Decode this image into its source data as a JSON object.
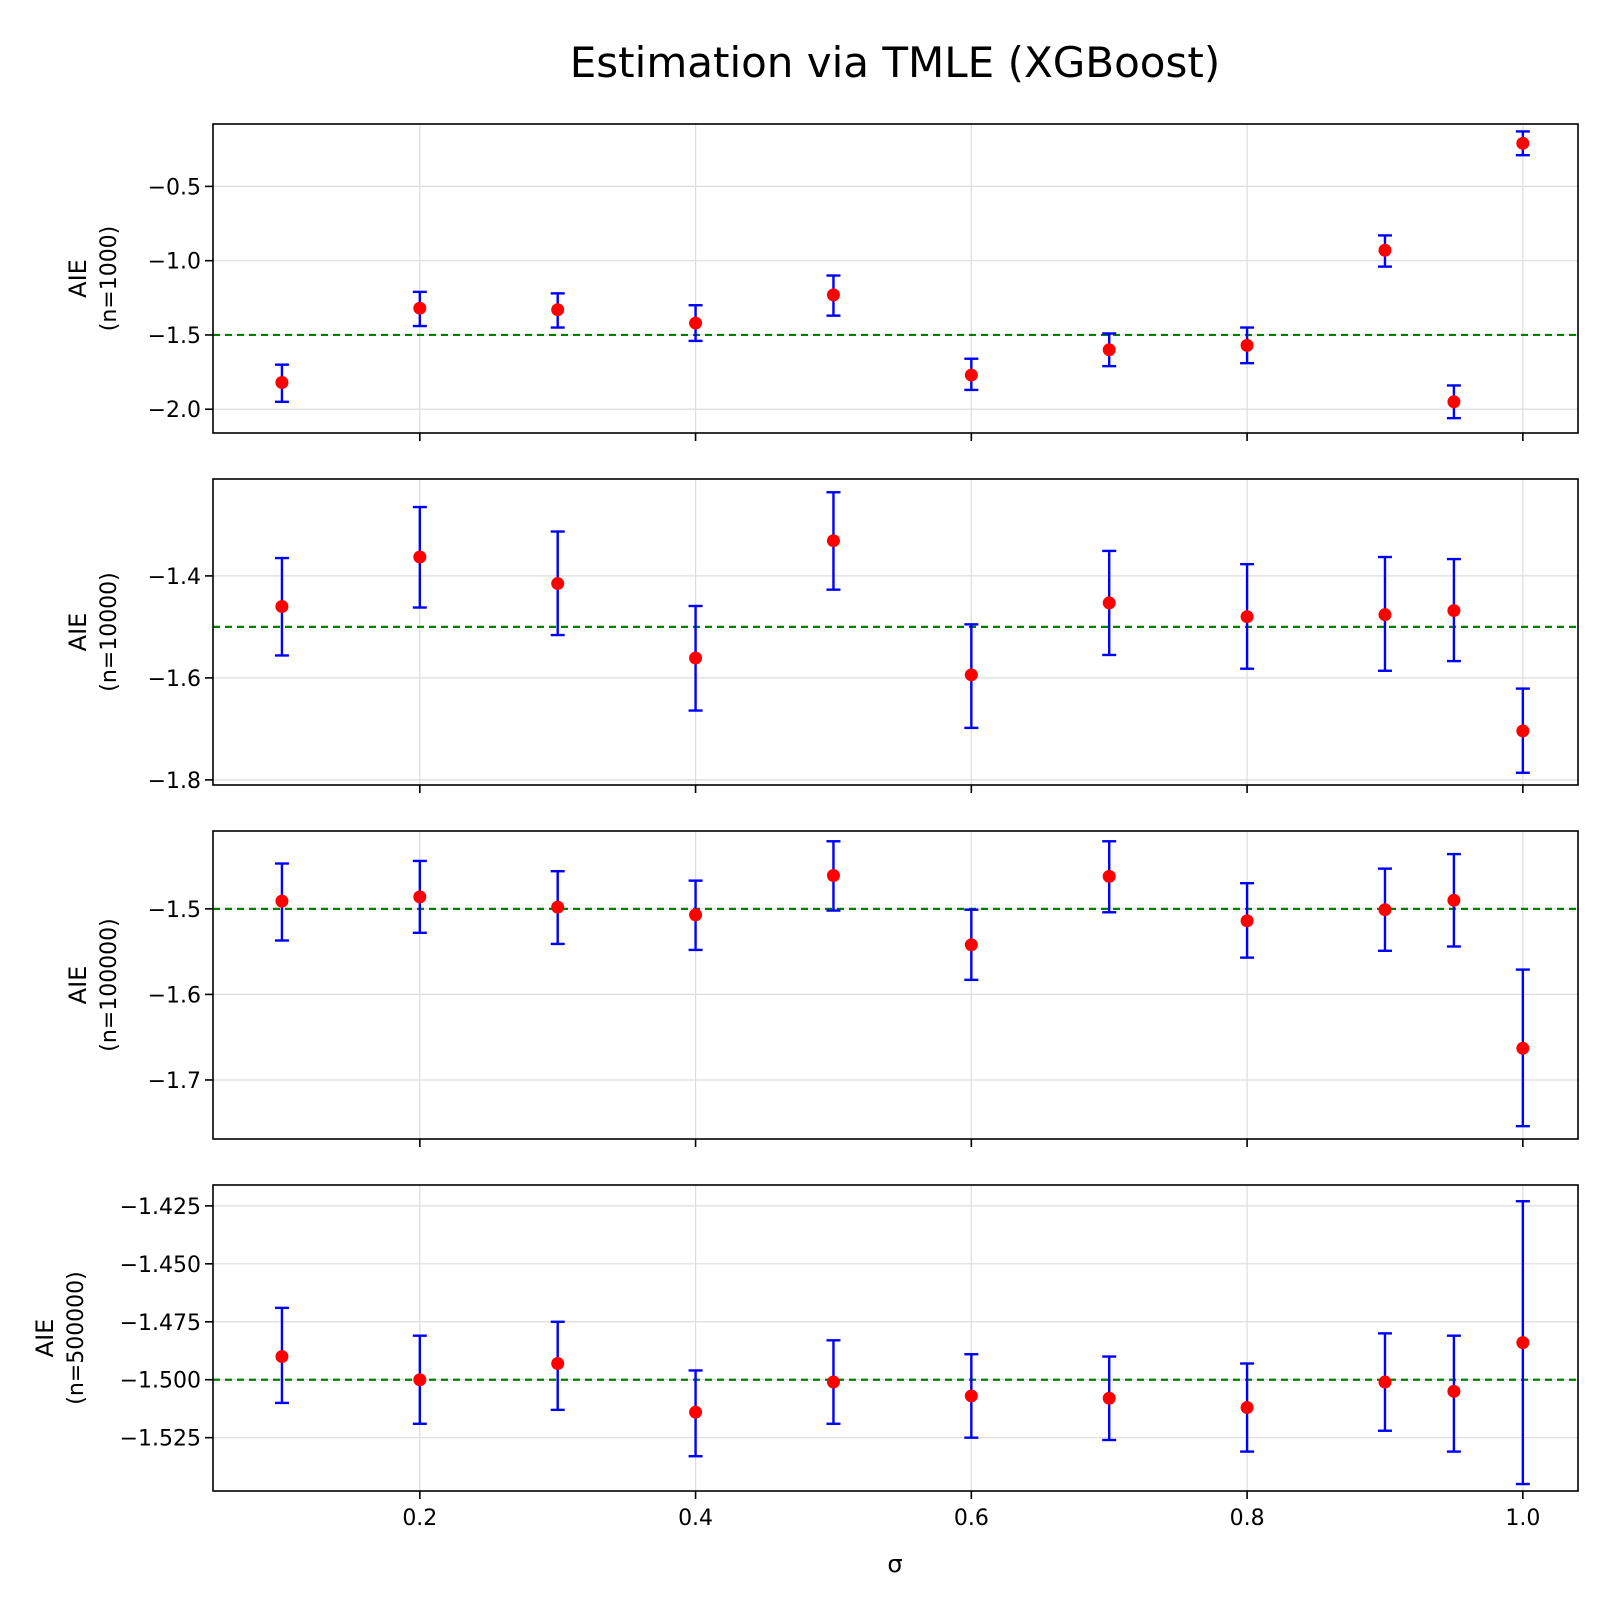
{
  "title": "Estimation via TMLE (XGBoost)",
  "xlabel": "σ",
  "colors": {
    "point": "#ff0000",
    "errorbar": "#0000ff",
    "reference": "#008000",
    "grid": "#dddddd"
  },
  "chart_data": [
    {
      "type": "scatter",
      "ylabel": "AIE",
      "ylabel_sub": "(n=1000)",
      "x": [
        0.1,
        0.2,
        0.3,
        0.4,
        0.5,
        0.6,
        0.7,
        0.8,
        0.9,
        0.95,
        1.0
      ],
      "y": [
        -1.82,
        -1.32,
        -1.33,
        -1.42,
        -1.23,
        -1.77,
        -1.6,
        -1.57,
        -0.93,
        -1.95,
        -0.21
      ],
      "lower": [
        -1.95,
        -1.44,
        -1.45,
        -1.54,
        -1.37,
        -1.87,
        -1.71,
        -1.69,
        -1.04,
        -2.06,
        -0.29
      ],
      "upper": [
        -1.7,
        -1.21,
        -1.22,
        -1.3,
        -1.1,
        -1.66,
        -1.49,
        -1.45,
        -0.83,
        -1.84,
        -0.13
      ],
      "reference_line": -1.5,
      "xlim": [
        0.05,
        1.04
      ],
      "ylim": [
        -2.16,
        -0.08
      ],
      "xticks": [
        0.2,
        0.4,
        0.6,
        0.8,
        1.0
      ],
      "yticks": [
        -2.0,
        -1.5,
        -1.0,
        -0.5
      ],
      "yticklabels": [
        "−2.0",
        "−1.5",
        "−1.0",
        "−0.5"
      ],
      "grid": true
    },
    {
      "type": "scatter",
      "ylabel": "AIE",
      "ylabel_sub": "(n=10000)",
      "x": [
        0.1,
        0.2,
        0.3,
        0.4,
        0.5,
        0.6,
        0.7,
        0.8,
        0.9,
        0.95,
        1.0
      ],
      "y": [
        -1.46,
        -1.363,
        -1.415,
        -1.561,
        -1.331,
        -1.594,
        -1.453,
        -1.48,
        -1.476,
        -1.468,
        -1.704
      ],
      "lower": [
        -1.556,
        -1.462,
        -1.516,
        -1.664,
        -1.427,
        -1.698,
        -1.555,
        -1.582,
        -1.586,
        -1.567,
        -1.786
      ],
      "upper": [
        -1.365,
        -1.265,
        -1.313,
        -1.459,
        -1.236,
        -1.495,
        -1.351,
        -1.377,
        -1.363,
        -1.367,
        -1.621
      ],
      "reference_line": -1.5,
      "xlim": [
        0.05,
        1.04
      ],
      "ylim": [
        -1.81,
        -1.21
      ],
      "xticks": [
        0.2,
        0.4,
        0.6,
        0.8,
        1.0
      ],
      "yticks": [
        -1.8,
        -1.6,
        -1.4
      ],
      "yticklabels": [
        "−1.8",
        "−1.6",
        "−1.4"
      ],
      "grid": true
    },
    {
      "type": "scatter",
      "ylabel": "AIE",
      "ylabel_sub": "(n=100000)",
      "x": [
        0.1,
        0.2,
        0.3,
        0.4,
        0.5,
        0.6,
        0.7,
        0.8,
        0.9,
        0.95,
        1.0
      ],
      "y": [
        -1.491,
        -1.486,
        -1.498,
        -1.507,
        -1.461,
        -1.542,
        -1.462,
        -1.514,
        -1.501,
        -1.49,
        -1.663
      ],
      "lower": [
        -1.537,
        -1.528,
        -1.541,
        -1.548,
        -1.502,
        -1.583,
        -1.504,
        -1.557,
        -1.549,
        -1.544,
        -1.754
      ],
      "upper": [
        -1.447,
        -1.444,
        -1.456,
        -1.467,
        -1.421,
        -1.501,
        -1.421,
        -1.47,
        -1.453,
        -1.436,
        -1.571
      ],
      "reference_line": -1.5,
      "xlim": [
        0.05,
        1.04
      ],
      "ylim": [
        -1.769,
        -1.409
      ],
      "xticks": [
        0.2,
        0.4,
        0.6,
        0.8,
        1.0
      ],
      "yticks": [
        -1.7,
        -1.6,
        -1.5
      ],
      "yticklabels": [
        "−1.7",
        "−1.6",
        "−1.5"
      ],
      "grid": true
    },
    {
      "type": "scatter",
      "ylabel": "AIE",
      "ylabel_sub": "(n=500000)",
      "x": [
        0.1,
        0.2,
        0.3,
        0.4,
        0.5,
        0.6,
        0.7,
        0.8,
        0.9,
        0.95,
        1.0
      ],
      "y": [
        -1.49,
        -1.5,
        -1.493,
        -1.514,
        -1.501,
        -1.507,
        -1.508,
        -1.512,
        -1.501,
        -1.505,
        -1.484
      ],
      "lower": [
        -1.51,
        -1.519,
        -1.513,
        -1.533,
        -1.519,
        -1.525,
        -1.526,
        -1.531,
        -1.522,
        -1.531,
        -1.545
      ],
      "upper": [
        -1.469,
        -1.481,
        -1.475,
        -1.496,
        -1.483,
        -1.489,
        -1.49,
        -1.493,
        -1.48,
        -1.481,
        -1.423
      ],
      "reference_line": -1.5,
      "xlim": [
        0.05,
        1.04
      ],
      "ylim": [
        -1.548,
        -1.416
      ],
      "xticks": [
        0.2,
        0.4,
        0.6,
        0.8,
        1.0
      ],
      "xticklabels": [
        "0.2",
        "0.4",
        "0.6",
        "0.8",
        "1.0"
      ],
      "yticks": [
        -1.525,
        -1.5,
        -1.475,
        -1.45,
        -1.425
      ],
      "yticklabels": [
        "−1.525",
        "−1.500",
        "−1.475",
        "−1.450",
        "−1.425"
      ],
      "grid": true
    }
  ]
}
